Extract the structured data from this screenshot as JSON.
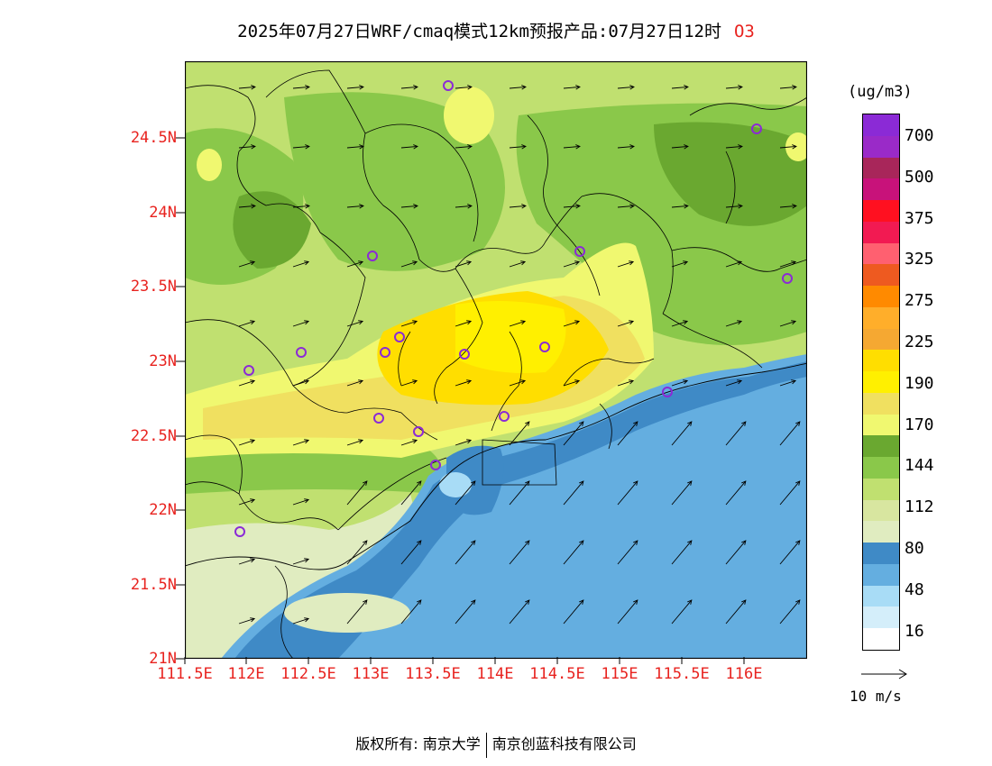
{
  "title": {
    "text": "2025年07月27日WRF/cmaq模式12km预报产品:07月27日12时",
    "pollutant": "O3"
  },
  "axes": {
    "y_ticks": [
      "24.5N",
      "24N",
      "23.5N",
      "23N",
      "22.5N",
      "22N",
      "21.5N",
      "21N"
    ],
    "x_ticks": [
      "111.5E",
      "112E",
      "112.5E",
      "113E",
      "113.5E",
      "114E",
      "114.5E",
      "115E",
      "115.5E",
      "116E"
    ],
    "lon_range": [
      111.5,
      116.5
    ],
    "lat_range": [
      21,
      25
    ]
  },
  "colorbar": {
    "units": "(ug/m3)",
    "labels": [
      "700",
      "500",
      "375",
      "325",
      "275",
      "225",
      "190",
      "170",
      "144",
      "112",
      "80",
      "48",
      "16"
    ],
    "colors_top_to_bottom": [
      "#8b2ad6",
      "#9a2ac8",
      "#a8265a",
      "#c8127a",
      "#ff1020",
      "#f21a52",
      "#ff6070",
      "#ee5a20",
      "#ff8a00",
      "#ffae2a",
      "#f5a832",
      "#ffde00",
      "#fff000",
      "#f0e060",
      "#f0f870",
      "#6aa830",
      "#8ac84a",
      "#c0e070",
      "#d8e6a0",
      "#e0ecc0",
      "#3f8ac6",
      "#64aee0",
      "#a8dcf6",
      "#d4eefa",
      "#ffffff"
    ]
  },
  "wind": {
    "reference_label": "10 m/s"
  },
  "footer": {
    "left": "版权所有: 南京大学",
    "right": "南京创蓝科技有限公司"
  }
}
